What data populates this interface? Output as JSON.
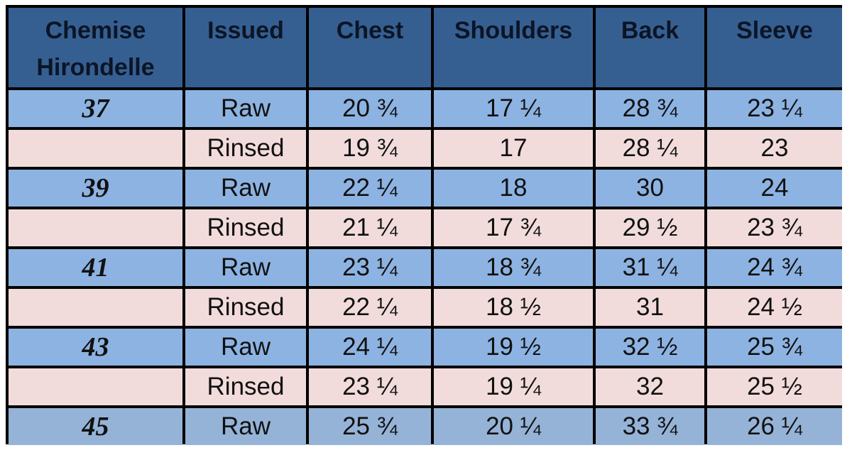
{
  "headers": [
    "Chemise Hirondelle",
    "Issued",
    "Chest",
    "Shoulders",
    "Back",
    "Sleeve"
  ],
  "rows": [
    {
      "size": "37",
      "issued": "Raw",
      "chest": "20 ¾",
      "shoulders": "17 ¼",
      "back": "28 ¾",
      "sleeve": "23 ¼"
    },
    {
      "size": "",
      "issued": "Rinsed",
      "chest": "19 ¾",
      "shoulders": "17",
      "back": "28 ¼",
      "sleeve": "23"
    },
    {
      "size": "39",
      "issued": "Raw",
      "chest": "22 ¼",
      "shoulders": "18",
      "back": "30",
      "sleeve": "24"
    },
    {
      "size": "",
      "issued": "Rinsed",
      "chest": "21 ¼",
      "shoulders": "17 ¾",
      "back": "29 ½",
      "sleeve": "23 ¾"
    },
    {
      "size": "41",
      "issued": "Raw",
      "chest": "23 ¼",
      "shoulders": "18 ¾",
      "back": "31 ¼",
      "sleeve": "24 ¾"
    },
    {
      "size": "",
      "issued": "Rinsed",
      "chest": "22 ¼",
      "shoulders": "18 ½",
      "back": "31",
      "sleeve": "24 ½"
    },
    {
      "size": "43",
      "issued": "Raw",
      "chest": "24 ¼",
      "shoulders": "19 ½",
      "back": "32 ½",
      "sleeve": "25 ¾"
    },
    {
      "size": "",
      "issued": "Rinsed",
      "chest": "23 ¼",
      "shoulders": "19 ¼",
      "back": "32",
      "sleeve": "25 ½"
    },
    {
      "size": "45",
      "issued": "Raw",
      "chest": "25 ¾",
      "shoulders": "20 ¼",
      "back": "33 ¾",
      "sleeve": "26 ¼"
    }
  ],
  "colors": {
    "header_bg": "#365f91",
    "raw_row_bg": "#8db3e2",
    "rinsed_row_bg": "#f2dcdb",
    "last_row_bg": "#95b3d7",
    "grid": "#000000"
  }
}
